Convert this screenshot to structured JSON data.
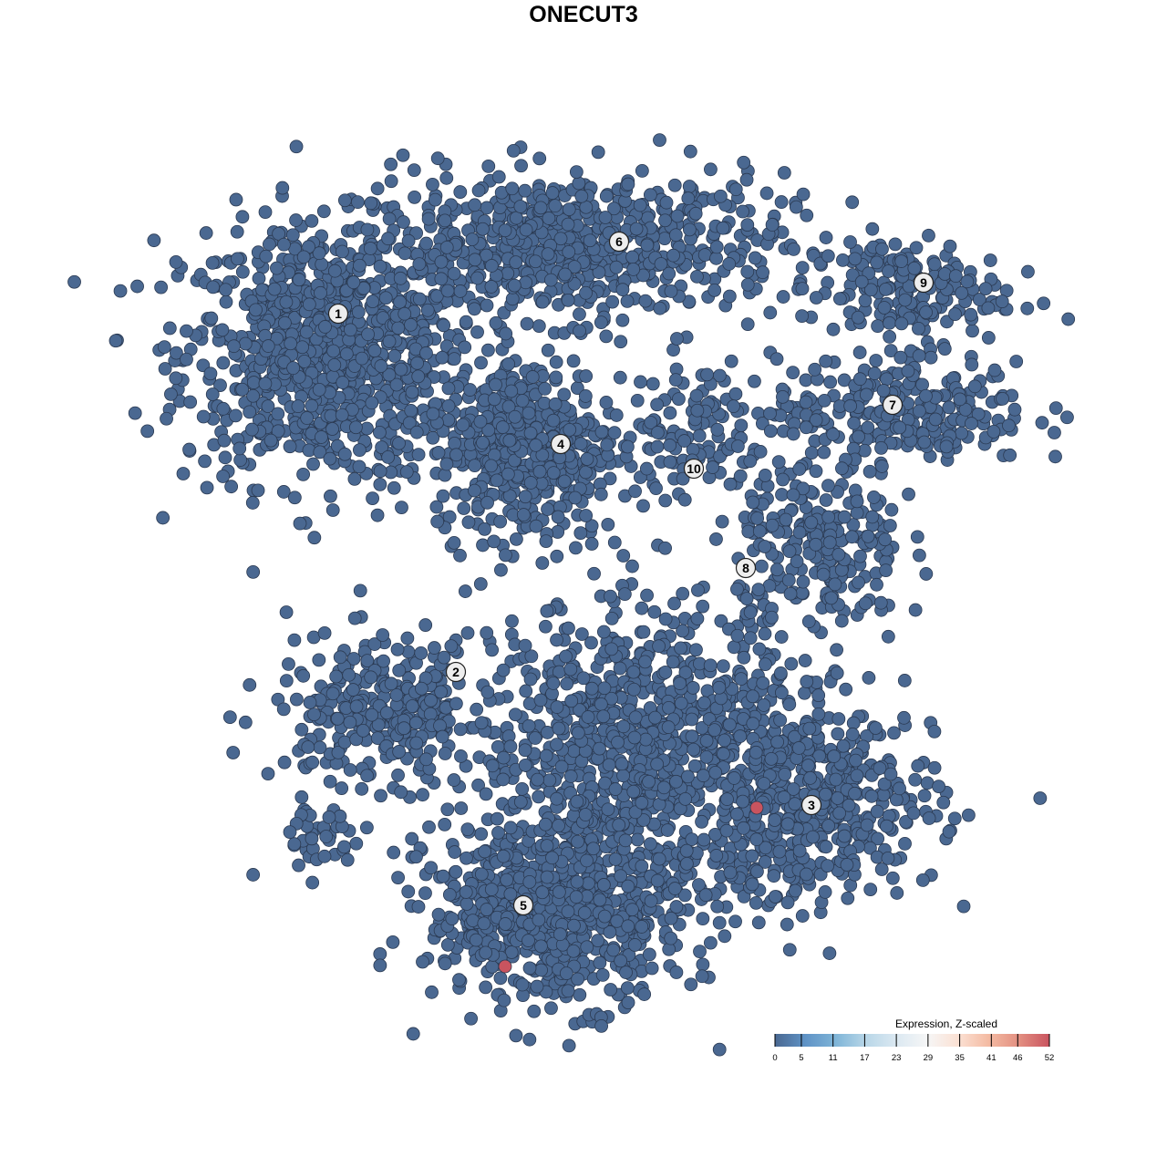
{
  "chart_data": {
    "type": "scatter",
    "title": "ONECUT3",
    "xlabel": "",
    "ylabel": "",
    "xlim": [
      -44,
      50
    ],
    "ylim": [
      -45,
      46
    ],
    "grid": false,
    "point_color_base": "#4a6891",
    "point_stroke": "#2b3a52",
    "clusters": [
      {
        "label": "1",
        "label_pos": [
          -26.9,
          29.6
        ],
        "components": [
          {
            "center": [
              -28,
              25
            ],
            "sd": [
              8,
              7
            ],
            "n": 900
          }
        ]
      },
      {
        "label": "6",
        "label_pos": [
          3.9,
          37.5
        ],
        "components": [
          {
            "center": [
              -2,
              37
            ],
            "sd": [
              12,
              4
            ],
            "n": 700
          }
        ]
      },
      {
        "label": "4",
        "label_pos": [
          -2.5,
          15.3
        ],
        "components": [
          {
            "center": [
              -6,
              15
            ],
            "sd": [
              5,
              5
            ],
            "n": 450
          }
        ]
      },
      {
        "label": "9",
        "label_pos": [
          37.3,
          33
        ],
        "components": [
          {
            "center": [
              35,
              32
            ],
            "sd": [
              5.5,
              3
            ],
            "n": 180
          }
        ]
      },
      {
        "label": "7",
        "label_pos": [
          33.9,
          19.6
        ],
        "components": [
          {
            "center": [
              35,
              19
            ],
            "sd": [
              7,
              3
            ],
            "n": 250
          }
        ]
      },
      {
        "label": "10",
        "label_pos": [
          12.1,
          12.6
        ],
        "components": [
          {
            "center": [
              12,
              17
            ],
            "sd": [
              4,
              4
            ],
            "n": 120
          }
        ]
      },
      {
        "label": "8",
        "label_pos": [
          17.8,
          1.7
        ],
        "components": [
          {
            "center": [
              26,
              4
            ],
            "sd": [
              4.5,
              5
            ],
            "n": 250
          }
        ]
      },
      {
        "label": "2",
        "label_pos": [
          -14,
          -9.7
        ],
        "components": [
          {
            "center": [
              -22,
              -14
            ],
            "sd": [
              6,
              4
            ],
            "n": 300
          },
          {
            "center": [
              -29,
              -28
            ],
            "sd": [
              3,
              2
            ],
            "n": 40
          }
        ]
      },
      {
        "label": "5",
        "label_pos": [
          -6.6,
          -35.3
        ],
        "components": [
          {
            "center": [
              -3,
              -36
            ],
            "sd": [
              7,
              5
            ],
            "n": 700
          },
          {
            "center": [
              6,
              -18
            ],
            "sd": [
              9,
              8
            ],
            "n": 900
          }
        ]
      },
      {
        "label": "3",
        "label_pos": [
          25,
          -24.3
        ],
        "components": [
          {
            "center": [
              25,
              -24
            ],
            "sd": [
              7,
              5.5
            ],
            "n": 500
          }
        ]
      }
    ],
    "highlighted_points": [
      {
        "x": 19,
        "y": -24.6,
        "value": 50
      },
      {
        "x": -8.6,
        "y": -42,
        "value": 50
      }
    ],
    "colorbar": {
      "title": "Expression, Z-scaled",
      "ticks": [
        0,
        5,
        11,
        17,
        23,
        29,
        35,
        41,
        46,
        52
      ],
      "range": [
        0,
        52
      ],
      "colors": [
        "#4a6891",
        "#5f93c6",
        "#7fb5d8",
        "#b9d7e8",
        "#dce9f2",
        "#f6f6f6",
        "#fbe1d4",
        "#f4bba3",
        "#e38f81",
        "#c9545f"
      ],
      "placement": "bottom-right"
    }
  }
}
